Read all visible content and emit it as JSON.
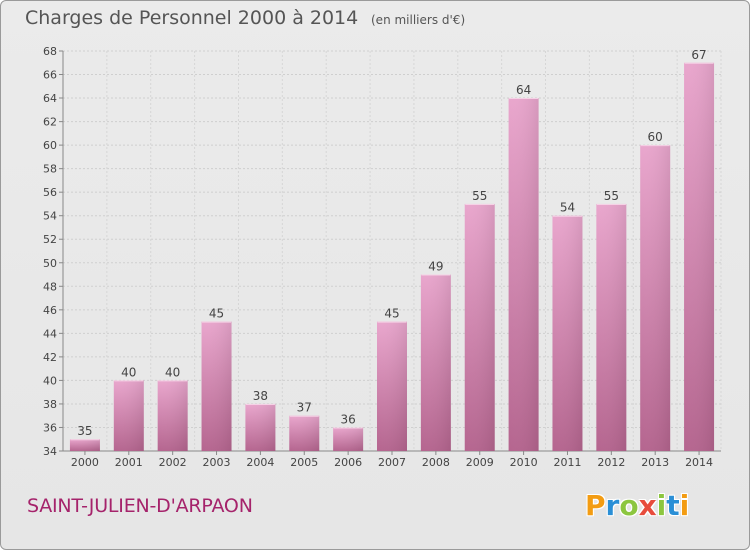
{
  "header": {
    "title": "Charges de Personnel 2000 à 2014",
    "subtitle": "(en milliers d'€)"
  },
  "footer": {
    "place": "SAINT-JULIEN-D'ARPAON",
    "logo_text": "Proxiti",
    "logo_colors": [
      "#f39c12",
      "#2a8fd6",
      "#8cc63f",
      "#e74c3c",
      "#8cc63f",
      "#2a8fd6",
      "#f39c12"
    ]
  },
  "chart_data": {
    "type": "bar",
    "title": "Charges de Personnel 2000 à 2014",
    "subtitle": "(en milliers d'€)",
    "xlabel": "",
    "ylabel": "",
    "categories": [
      "2000",
      "2001",
      "2002",
      "2003",
      "2004",
      "2005",
      "2006",
      "2007",
      "2008",
      "2009",
      "2010",
      "2011",
      "2012",
      "2013",
      "2014"
    ],
    "values": [
      35,
      40,
      40,
      45,
      38,
      37,
      36,
      45,
      49,
      55,
      64,
      54,
      55,
      60,
      67
    ],
    "ylim": [
      34,
      68
    ],
    "yticks": [
      34,
      36,
      38,
      40,
      42,
      44,
      46,
      48,
      50,
      52,
      54,
      56,
      58,
      60,
      62,
      64,
      66,
      68
    ],
    "grid": true,
    "bar_color": "#c9699f"
  }
}
